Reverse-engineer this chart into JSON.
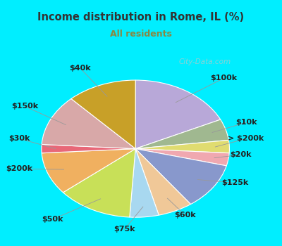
{
  "title": "Income distribution in Rome, IL (%)",
  "subtitle": "All residents",
  "title_color": "#333333",
  "subtitle_color": "#888844",
  "watermark": "City-Data.com",
  "bg_cyan": "#00eeff",
  "bg_chart": "#e8f5ee",
  "labels": [
    "$100k",
    "$10k",
    "> $200k",
    "$20k",
    "$125k",
    "$60k",
    "$75k",
    "$50k",
    "$200k",
    "$30k",
    "$150k",
    "$40k"
  ],
  "values": [
    18,
    5,
    3,
    3,
    11,
    6,
    5,
    13,
    10,
    2,
    12,
    12
  ],
  "colors": [
    "#b8a8d8",
    "#a0b890",
    "#e0dc70",
    "#f0a8b0",
    "#8898cc",
    "#f0c898",
    "#a8d8f0",
    "#c8e058",
    "#f0b060",
    "#e86878",
    "#d8a8a8",
    "#c8a028"
  ],
  "startangle": 90,
  "label_fontsize": 8,
  "label_color": "#222222",
  "line_color": "#999999"
}
